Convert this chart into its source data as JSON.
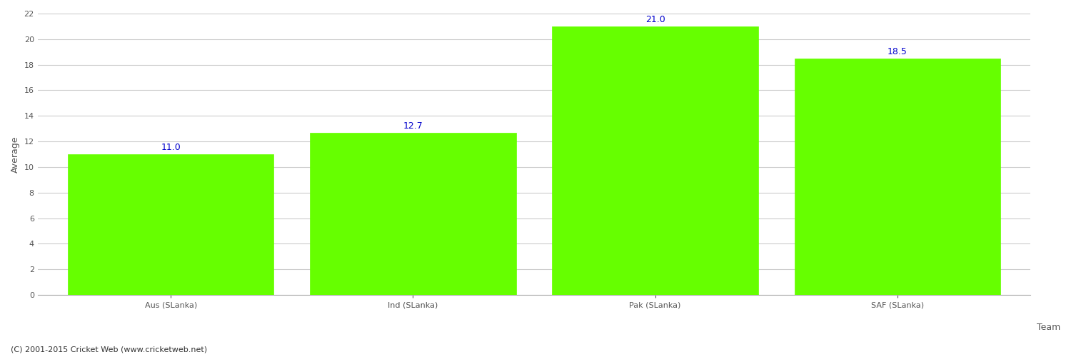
{
  "categories": [
    "Aus (SLanka)",
    "Ind (SLanka)",
    "Pak (SLanka)",
    "SAF (SLanka)"
  ],
  "values": [
    11.0,
    12.7,
    21.0,
    18.5
  ],
  "bar_color": "#66ff00",
  "bar_edge_color": "#66ff00",
  "label_color": "#0000cc",
  "label_fontsize": 9,
  "ylabel": "Average",
  "xlabel": "Team",
  "ylim": [
    0,
    22
  ],
  "yticks": [
    0,
    2,
    4,
    6,
    8,
    10,
    12,
    14,
    16,
    18,
    20,
    22
  ],
  "grid_color": "#cccccc",
  "background_color": "#ffffff",
  "bar_width": 0.85,
  "axis_label_fontsize": 9,
  "tick_fontsize": 8,
  "copyright_text": "(C) 2001-2015 Cricket Web (www.cricketweb.net)",
  "copyright_fontsize": 8,
  "copyright_color": "#333333"
}
